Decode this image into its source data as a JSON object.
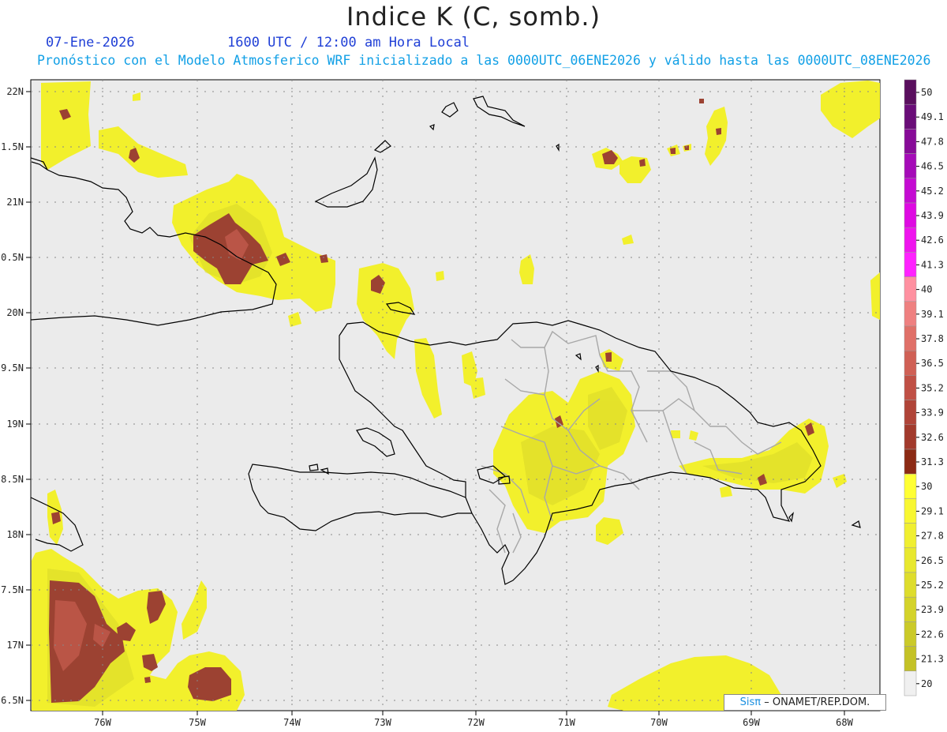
{
  "header": {
    "title": "Indice K (C, somb.)",
    "date": "07-Ene-2026",
    "time": "1600 UTC / 12:00 am Hora Local",
    "description": "Pronóstico con el Modelo Atmosferico WRF inicializado a las 0000UTC_06ENE2026 y válido hasta las  0000UTC_08ENE2026"
  },
  "axes": {
    "lat_labels": [
      "22N",
      "1.5N",
      "21N",
      "0.5N",
      "20N",
      "9.5N",
      "19N",
      "8.5N",
      "18N",
      "7.5N",
      "17N",
      "6.5N"
    ],
    "lon_labels": [
      "76W",
      "75W",
      "74W",
      "73W",
      "72W",
      "71W",
      "70W",
      "69W",
      "68W"
    ]
  },
  "colorbar": {
    "labels": [
      "50",
      "49.1",
      "47.8",
      "46.5",
      "45.2",
      "43.9",
      "42.6",
      "41.3",
      "40",
      "39.1",
      "37.8",
      "36.5",
      "35.2",
      "33.9",
      "32.6",
      "31.3",
      "30",
      "29.1",
      "27.8",
      "26.5",
      "25.2",
      "23.9",
      "22.6",
      "21.3",
      "20"
    ],
    "colors": [
      "#5a0f5e",
      "#6a0d78",
      "#870b98",
      "#a50bb8",
      "#c40bd2",
      "#de0ae2",
      "#ef14ee",
      "#ff22ff",
      "#ff90a0",
      "#ef8080",
      "#e07068",
      "#d06055",
      "#c05045",
      "#b04438",
      "#a23a2c",
      "#8c2a14",
      "#ffff33",
      "#f8f732",
      "#f0ef30",
      "#e8e82e",
      "#dedd2c",
      "#d4d32a",
      "#cbca28",
      "#c4c226",
      "#f0f0f0"
    ]
  },
  "credit": {
    "logo": "Sisπ",
    "text": "– ONAMET/REP.DOM."
  }
}
